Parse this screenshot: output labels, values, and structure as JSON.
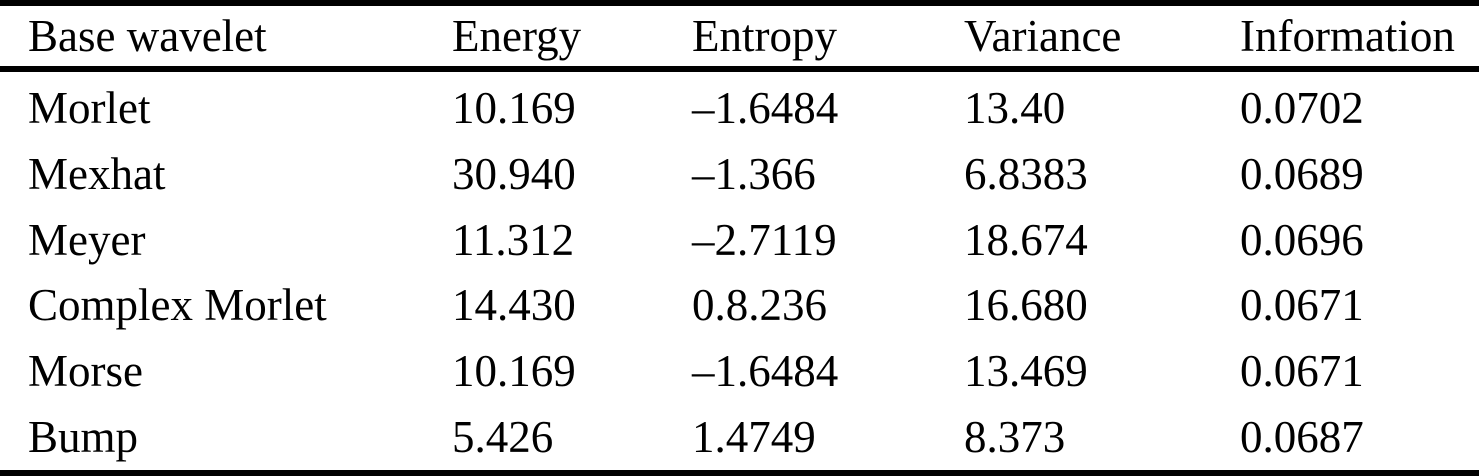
{
  "colors": {
    "text": "#000000",
    "background": "#ffffff",
    "rule": "#000000"
  },
  "table": {
    "columns": [
      "Base wavelet",
      "Energy",
      "Entropy",
      "Variance",
      "Information"
    ],
    "rows": [
      [
        "Morlet",
        "10.169",
        "–1.6484",
        "13.40",
        "0.0702"
      ],
      [
        "Mexhat",
        "30.940",
        "–1.366",
        "6.8383",
        "0.0689"
      ],
      [
        "Meyer",
        "11.312",
        "–2.7119",
        "18.674",
        "0.0696"
      ],
      [
        "Complex Morlet",
        "14.430",
        "0.8.236",
        "16.680",
        "0.0671"
      ],
      [
        "Morse",
        "10.169",
        "–1.6484",
        "13.469",
        "0.0671"
      ],
      [
        "Bump",
        "5.426",
        "1.4749",
        "8.373",
        "0.0687"
      ]
    ]
  },
  "chart_data": {
    "type": "table",
    "title": "",
    "columns": [
      "Base wavelet",
      "Energy",
      "Entropy",
      "Variance",
      "Information"
    ],
    "rows": [
      {
        "base_wavelet": "Morlet",
        "energy": 10.169,
        "entropy": -1.6484,
        "variance": 13.4,
        "information": 0.0702
      },
      {
        "base_wavelet": "Mexhat",
        "energy": 30.94,
        "entropy": -1.366,
        "variance": 6.8383,
        "information": 0.0689
      },
      {
        "base_wavelet": "Meyer",
        "energy": 11.312,
        "entropy": -2.7119,
        "variance": 18.674,
        "information": 0.0696
      },
      {
        "base_wavelet": "Complex Morlet",
        "energy": 14.43,
        "entropy": "0.8.236",
        "variance": 16.68,
        "information": 0.0671
      },
      {
        "base_wavelet": "Morse",
        "energy": 10.169,
        "entropy": -1.6484,
        "variance": 13.469,
        "information": 0.0671
      },
      {
        "base_wavelet": "Bump",
        "energy": 5.426,
        "entropy": 1.4749,
        "variance": 8.373,
        "information": 0.0687
      }
    ]
  }
}
